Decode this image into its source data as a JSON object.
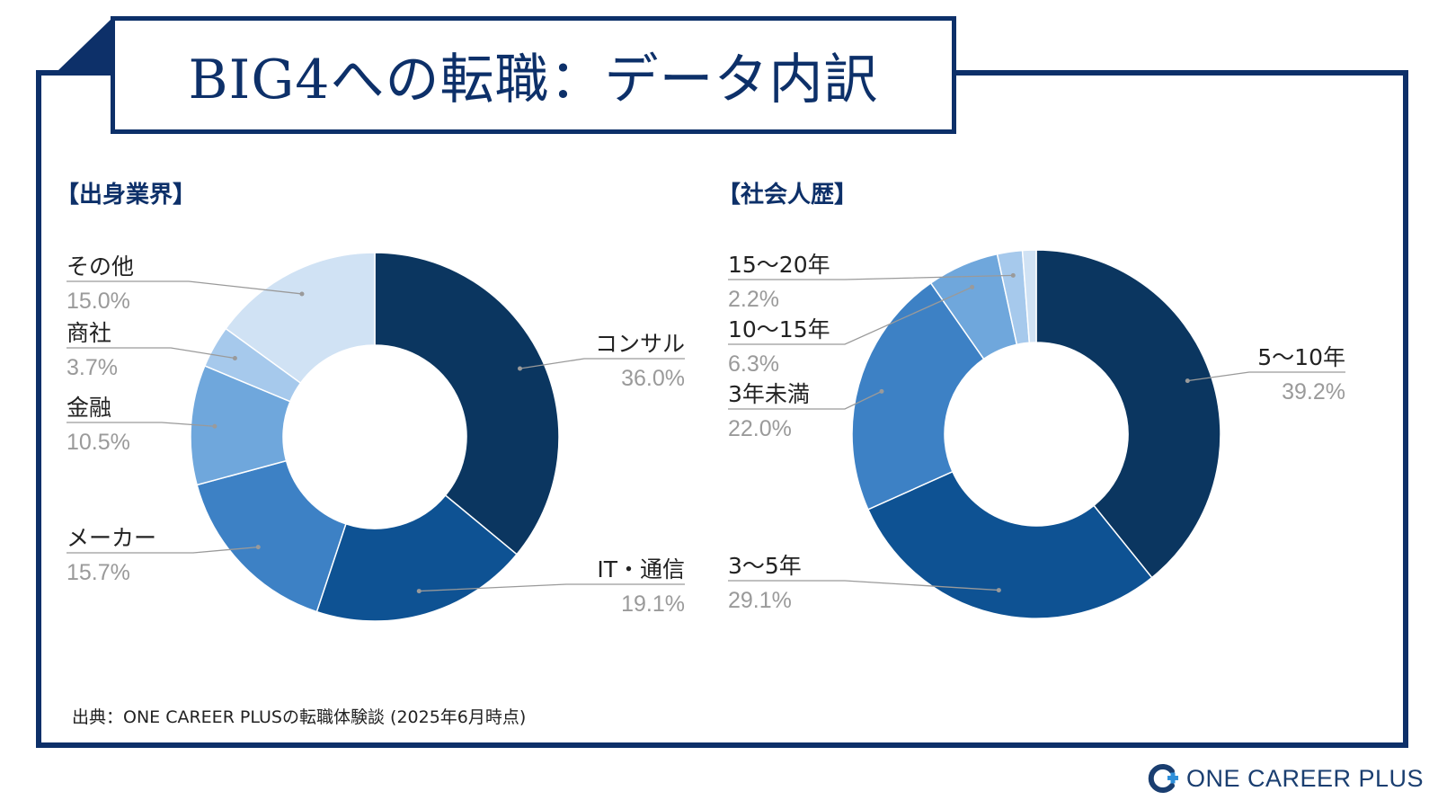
{
  "title": "BIG4への転職：データ内訳",
  "source_note": "出典：ONE CAREER PLUSの転職体験談 (2025年6月時点)",
  "logo": {
    "text": "ONE CAREER PLUS",
    "icon": "one-career-plus-logo-icon"
  },
  "colors": {
    "frame": "#0d3069",
    "slices": [
      "#0b3660",
      "#0e5293",
      "#3d81c5",
      "#6fa7dc",
      "#a6c9ec",
      "#d0e2f4"
    ]
  },
  "chart_data": [
    {
      "type": "pie",
      "title": "【出身業界】",
      "labels": [
        "コンサル",
        "IT・通信",
        "メーカー",
        "金融",
        "商社",
        "その他"
      ],
      "values": [
        36.0,
        19.1,
        15.7,
        10.5,
        3.7,
        15.0
      ],
      "value_labels": [
        "36.0%",
        "19.1%",
        "15.7%",
        "10.5%",
        "3.7%",
        "15.0%"
      ],
      "colors": [
        "#0b3660",
        "#0e5293",
        "#3d81c5",
        "#6fa7dc",
        "#a6c9ec",
        "#d0e2f4"
      ]
    },
    {
      "type": "pie",
      "title": "【社会人歴】",
      "labels": [
        "5〜10年",
        "3〜5年",
        "3年未満",
        "10〜15年",
        "15〜20年",
        ""
      ],
      "values": [
        39.2,
        29.1,
        22.0,
        6.3,
        2.2,
        1.2
      ],
      "value_labels": [
        "39.2%",
        "29.1%",
        "22.0%",
        "6.3%",
        "2.2%",
        ""
      ],
      "colors": [
        "#0b3660",
        "#0e5293",
        "#3d81c5",
        "#6fa7dc",
        "#a6c9ec",
        "#d0e2f4"
      ]
    }
  ]
}
